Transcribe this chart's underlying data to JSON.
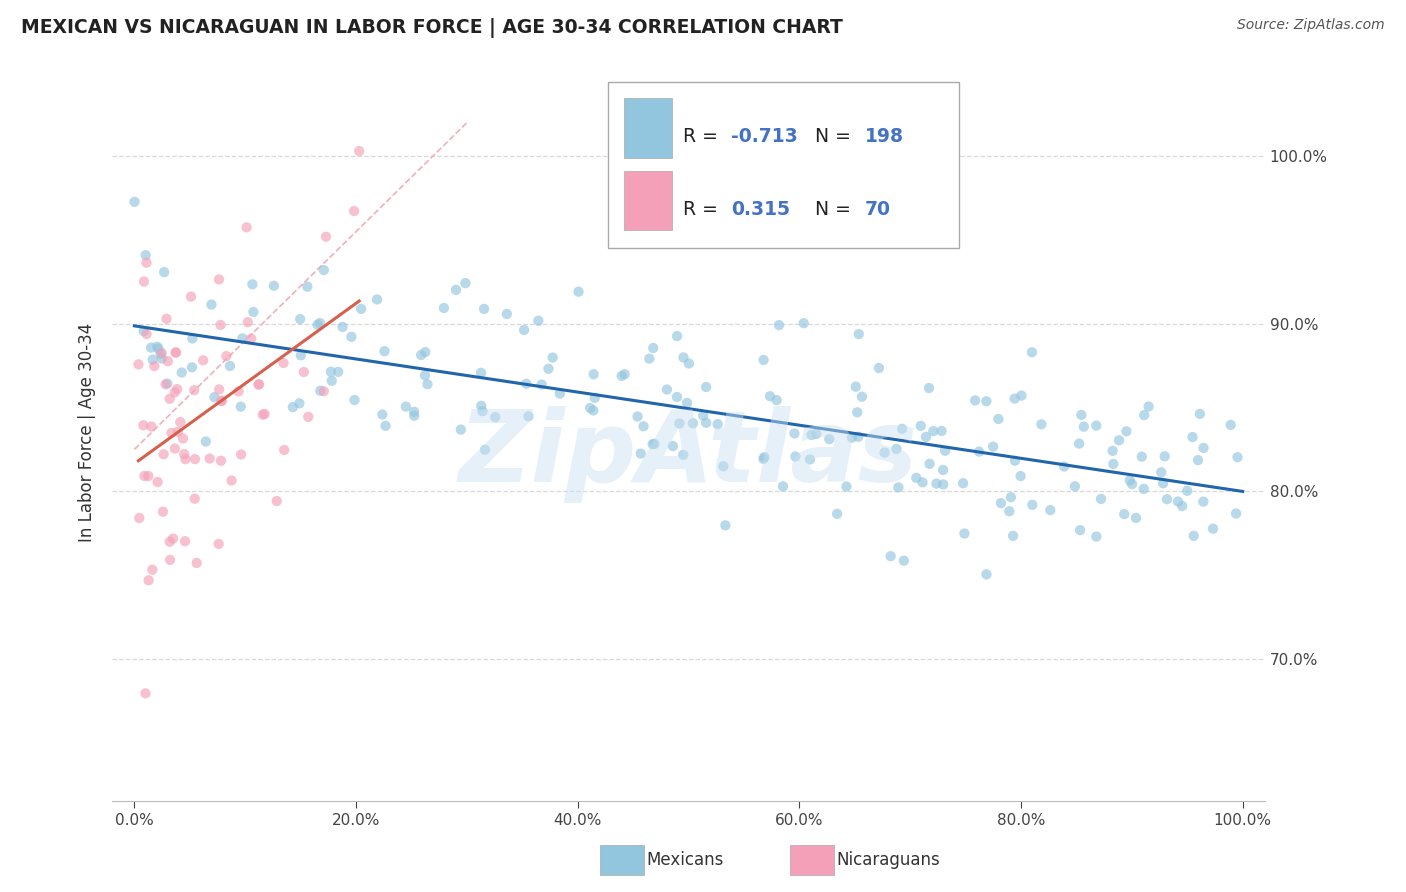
{
  "title": "MEXICAN VS NICARAGUAN IN LABOR FORCE | AGE 30-34 CORRELATION CHART",
  "source_text": "Source: ZipAtlas.com",
  "ylabel": "In Labor Force | Age 30-34",
  "xlabel_ticks": [
    "0.0%",
    "20.0%",
    "40.0%",
    "60.0%",
    "80.0%",
    "100.0%"
  ],
  "xlabel_vals": [
    0.0,
    0.2,
    0.4,
    0.6,
    0.8,
    1.0
  ],
  "ytick_labels": [
    "70.0%",
    "80.0%",
    "90.0%",
    "100.0%"
  ],
  "ytick_vals": [
    0.7,
    0.8,
    0.9,
    1.0
  ],
  "xlim": [
    -0.02,
    1.02
  ],
  "ylim": [
    0.615,
    1.055
  ],
  "blue_color": "#92c5de",
  "pink_color": "#f4a0b8",
  "blue_line_color": "#2166ac",
  "pink_line_color": "#d6604d",
  "diag_line_color": "#ddaaaa",
  "scatter_alpha": 0.65,
  "scatter_size": 55,
  "blue_R": -0.713,
  "blue_N": 198,
  "pink_R": 0.315,
  "pink_N": 70,
  "watermark": "ZipAtlas",
  "legend_r_color": "#333333",
  "legend_val_color": "#4472c4",
  "legend_n_color": "#333333",
  "legend_nval_color": "#4472c4",
  "r_neg_color": "#4472c4",
  "r_pos_color": "#4472c4",
  "title_color": "#222222",
  "source_color": "#555555",
  "ylabel_color": "#333333"
}
